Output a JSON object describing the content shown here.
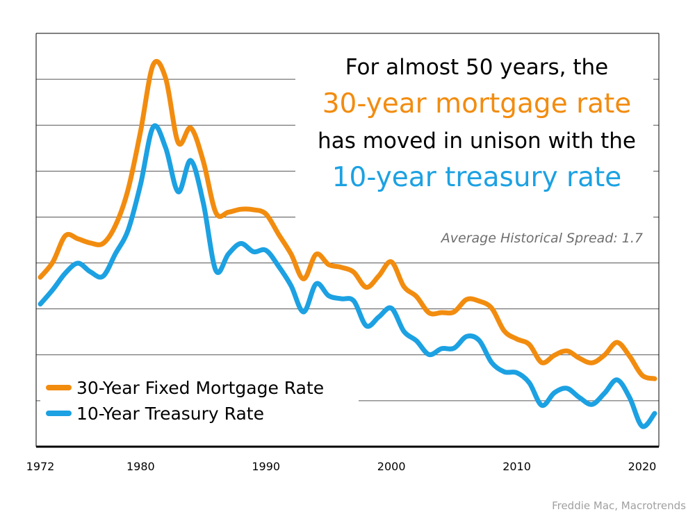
{
  "chart_data": {
    "type": "line",
    "headline": {
      "line1": "For almost 50 years, the",
      "line2": "30-year mortgage rate",
      "line3": "has moved in unison with the",
      "line4": "10-year treasury rate"
    },
    "annotation": "Average Historical Spread: 1.7",
    "source": "Freddie Mac, Macrotrends",
    "x_ticks": [
      "1972",
      "1980",
      "1990",
      "2000",
      "2010",
      "2020"
    ],
    "grid": true,
    "legend_position": "bottom-left",
    "xlim": [
      1972,
      2021
    ],
    "ylim": [
      0,
      18
    ],
    "x": [
      1972,
      1973,
      1974,
      1975,
      1976,
      1977,
      1978,
      1979,
      1980,
      1981,
      1982,
      1983,
      1984,
      1985,
      1986,
      1987,
      1988,
      1989,
      1990,
      1991,
      1992,
      1993,
      1994,
      1995,
      1996,
      1997,
      1998,
      1999,
      2000,
      2001,
      2002,
      2003,
      2004,
      2005,
      2006,
      2007,
      2008,
      2009,
      2010,
      2011,
      2012,
      2013,
      2014,
      2015,
      2016,
      2017,
      2018,
      2019,
      2020,
      2021
    ],
    "series": [
      {
        "name": "30-Year Fixed Mortgage Rate",
        "color": "#f28c0f",
        "values": [
          7.38,
          8.04,
          9.19,
          9.05,
          8.87,
          8.85,
          9.64,
          11.2,
          13.74,
          16.63,
          16.04,
          13.24,
          13.88,
          12.43,
          10.19,
          10.21,
          10.34,
          10.32,
          10.13,
          9.25,
          8.39,
          7.31,
          8.38,
          7.93,
          7.81,
          7.6,
          6.94,
          7.44,
          8.05,
          6.97,
          6.54,
          5.83,
          5.84,
          5.87,
          6.41,
          6.34,
          6.03,
          5.04,
          4.69,
          4.45,
          3.66,
          3.98,
          4.17,
          3.85,
          3.65,
          3.99,
          4.54,
          3.94,
          3.11,
          2.96
        ]
      },
      {
        "name": "10-Year Treasury Rate",
        "color": "#1ca1e2",
        "values": [
          6.21,
          6.84,
          7.56,
          7.99,
          7.61,
          7.42,
          8.41,
          9.43,
          11.43,
          13.92,
          13.01,
          11.1,
          12.46,
          10.62,
          7.67,
          8.39,
          8.85,
          8.49,
          8.55,
          7.86,
          7.01,
          5.87,
          7.09,
          6.57,
          6.44,
          6.35,
          5.26,
          5.65,
          6.03,
          5.02,
          4.61,
          4.01,
          4.27,
          4.29,
          4.8,
          4.63,
          3.66,
          3.26,
          3.22,
          2.78,
          1.8,
          2.35,
          2.54,
          2.14,
          1.84,
          2.33,
          2.91,
          2.14,
          0.89,
          1.45
        ]
      }
    ]
  }
}
